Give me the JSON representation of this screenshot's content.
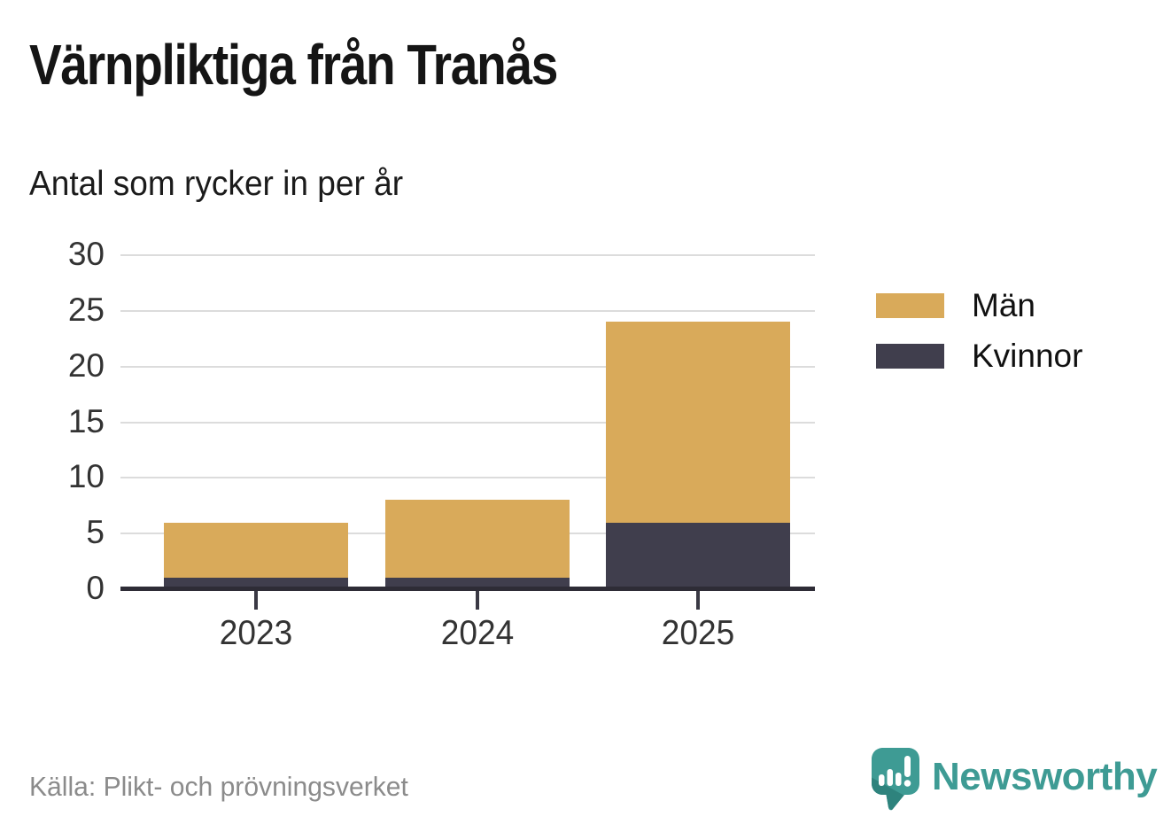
{
  "title": "Värnpliktiga från Tranås",
  "subtitle": "Antal som rycker in per år",
  "source": "Källa: Plikt- och prövningsverket",
  "brand": {
    "name": "Newsworthy",
    "color": "#3E9B94"
  },
  "colors": {
    "men": "#D9AA5A",
    "women": "#403E4D",
    "grid": "#DCDCDC",
    "axis": "#2E2C36",
    "labels": "#333333",
    "source_text": "#8B8B8B"
  },
  "legend": {
    "items": [
      {
        "label": "Män",
        "color": "#D9AA5A"
      },
      {
        "label": "Kvinnor",
        "color": "#403E4D"
      }
    ]
  },
  "chart_data": {
    "type": "bar",
    "stacked": true,
    "title": "Värnpliktiga från Tranås",
    "subtitle": "Antal som rycker in per år",
    "categories": [
      "2023",
      "2024",
      "2025"
    ],
    "series": [
      {
        "name": "Män",
        "color": "#D9AA5A",
        "values": [
          5,
          7,
          18
        ]
      },
      {
        "name": "Kvinnor",
        "color": "#403E4D",
        "values": [
          1,
          1,
          6
        ]
      }
    ],
    "stack_order_bottom_to_top": [
      "Kvinnor",
      "Män"
    ],
    "totals": [
      6,
      8,
      24
    ],
    "xlabel": "",
    "ylabel": "",
    "ylim": [
      0,
      30
    ],
    "yticks": [
      0,
      5,
      10,
      15,
      20,
      25,
      30
    ],
    "grid": true,
    "legend_position": "right"
  }
}
